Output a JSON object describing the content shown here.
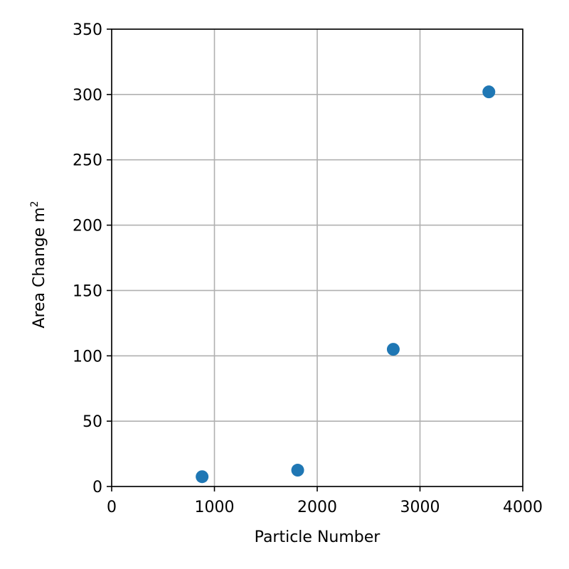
{
  "chart_data": {
    "type": "scatter",
    "title": "",
    "xlabel": "Particle Number",
    "ylabel_text": "Area Change m",
    "ylabel_superscript": "2",
    "xlim": [
      0,
      4000
    ],
    "ylim": [
      0,
      350
    ],
    "xticks": [
      0,
      1000,
      2000,
      3000,
      4000
    ],
    "yticks": [
      0,
      50,
      100,
      150,
      200,
      250,
      300,
      350
    ],
    "xtick_labels": [
      "0",
      "1000",
      "2000",
      "3000",
      "4000"
    ],
    "ytick_labels": [
      "0",
      "50",
      "100",
      "150",
      "200",
      "250",
      "300",
      "350"
    ],
    "grid": true,
    "series": [
      {
        "color": "#1f77b4",
        "x": [
          880,
          1810,
          2740,
          3670
        ],
        "y": [
          7.5,
          12.5,
          105,
          302
        ]
      }
    ]
  }
}
